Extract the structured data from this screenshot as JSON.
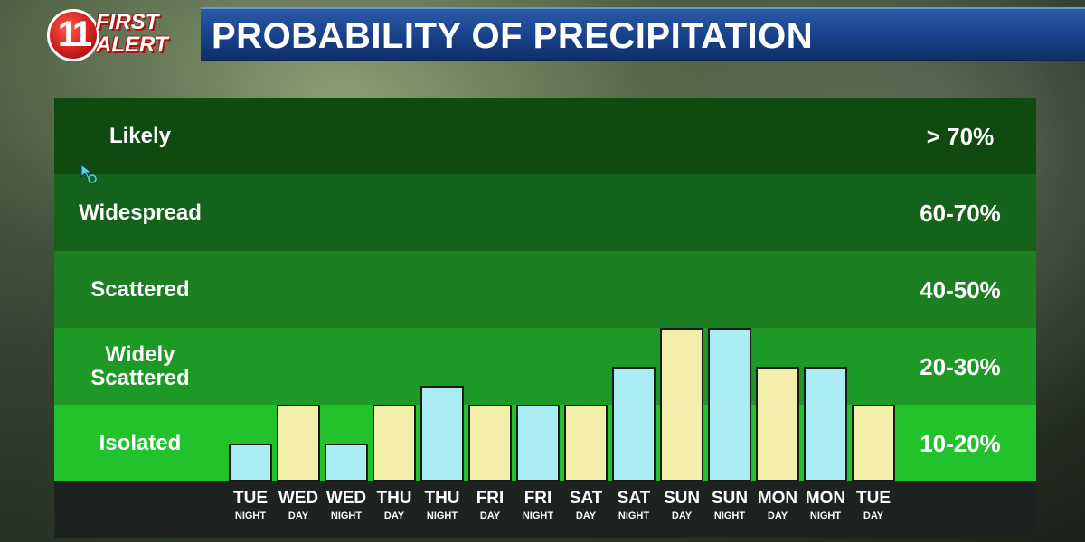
{
  "header": {
    "logo_number": "11",
    "logo_line1": "FIRST",
    "logo_line2": "ALERT",
    "title": "PROBABILITY OF PRECIPITATION"
  },
  "colors": {
    "night_bar": "#a9ecf3",
    "day_bar": "#f3eeaa",
    "band_likely": "#0f4a10",
    "band_widespread": "#15621a",
    "band_scattered": "#1c7f22",
    "band_widely_scattered": "#1d9a25",
    "band_isolated": "#22c22d"
  },
  "chart_data": {
    "type": "bar",
    "title": "PROBABILITY OF PRECIPITATION",
    "bands": [
      {
        "label": "Likely",
        "range": "> 70%"
      },
      {
        "label": "Widespread",
        "range": "60-70%"
      },
      {
        "label": "Scattered",
        "range": "40-50%"
      },
      {
        "label": "Widely Scattered",
        "range": "20-30%"
      },
      {
        "label": "Isolated",
        "range": "10-20%"
      }
    ],
    "categories": [
      {
        "day": "TUE",
        "period": "NIGHT"
      },
      {
        "day": "WED",
        "period": "DAY"
      },
      {
        "day": "WED",
        "period": "NIGHT"
      },
      {
        "day": "THU",
        "period": "DAY"
      },
      {
        "day": "THU",
        "period": "NIGHT"
      },
      {
        "day": "FRI",
        "period": "DAY"
      },
      {
        "day": "FRI",
        "period": "NIGHT"
      },
      {
        "day": "SAT",
        "period": "DAY"
      },
      {
        "day": "SAT",
        "period": "NIGHT"
      },
      {
        "day": "SUN",
        "period": "DAY"
      },
      {
        "day": "SUN",
        "period": "NIGHT"
      },
      {
        "day": "MON",
        "period": "DAY"
      },
      {
        "day": "MON",
        "period": "NIGHT"
      },
      {
        "day": "TUE",
        "period": "DAY"
      }
    ],
    "values_band_level": [
      0.5,
      1.0,
      0.5,
      1.0,
      1.25,
      1.0,
      1.0,
      1.0,
      1.5,
      2.0,
      2.0,
      1.5,
      1.5,
      1.0
    ],
    "ylim_bands": [
      0,
      5
    ]
  }
}
